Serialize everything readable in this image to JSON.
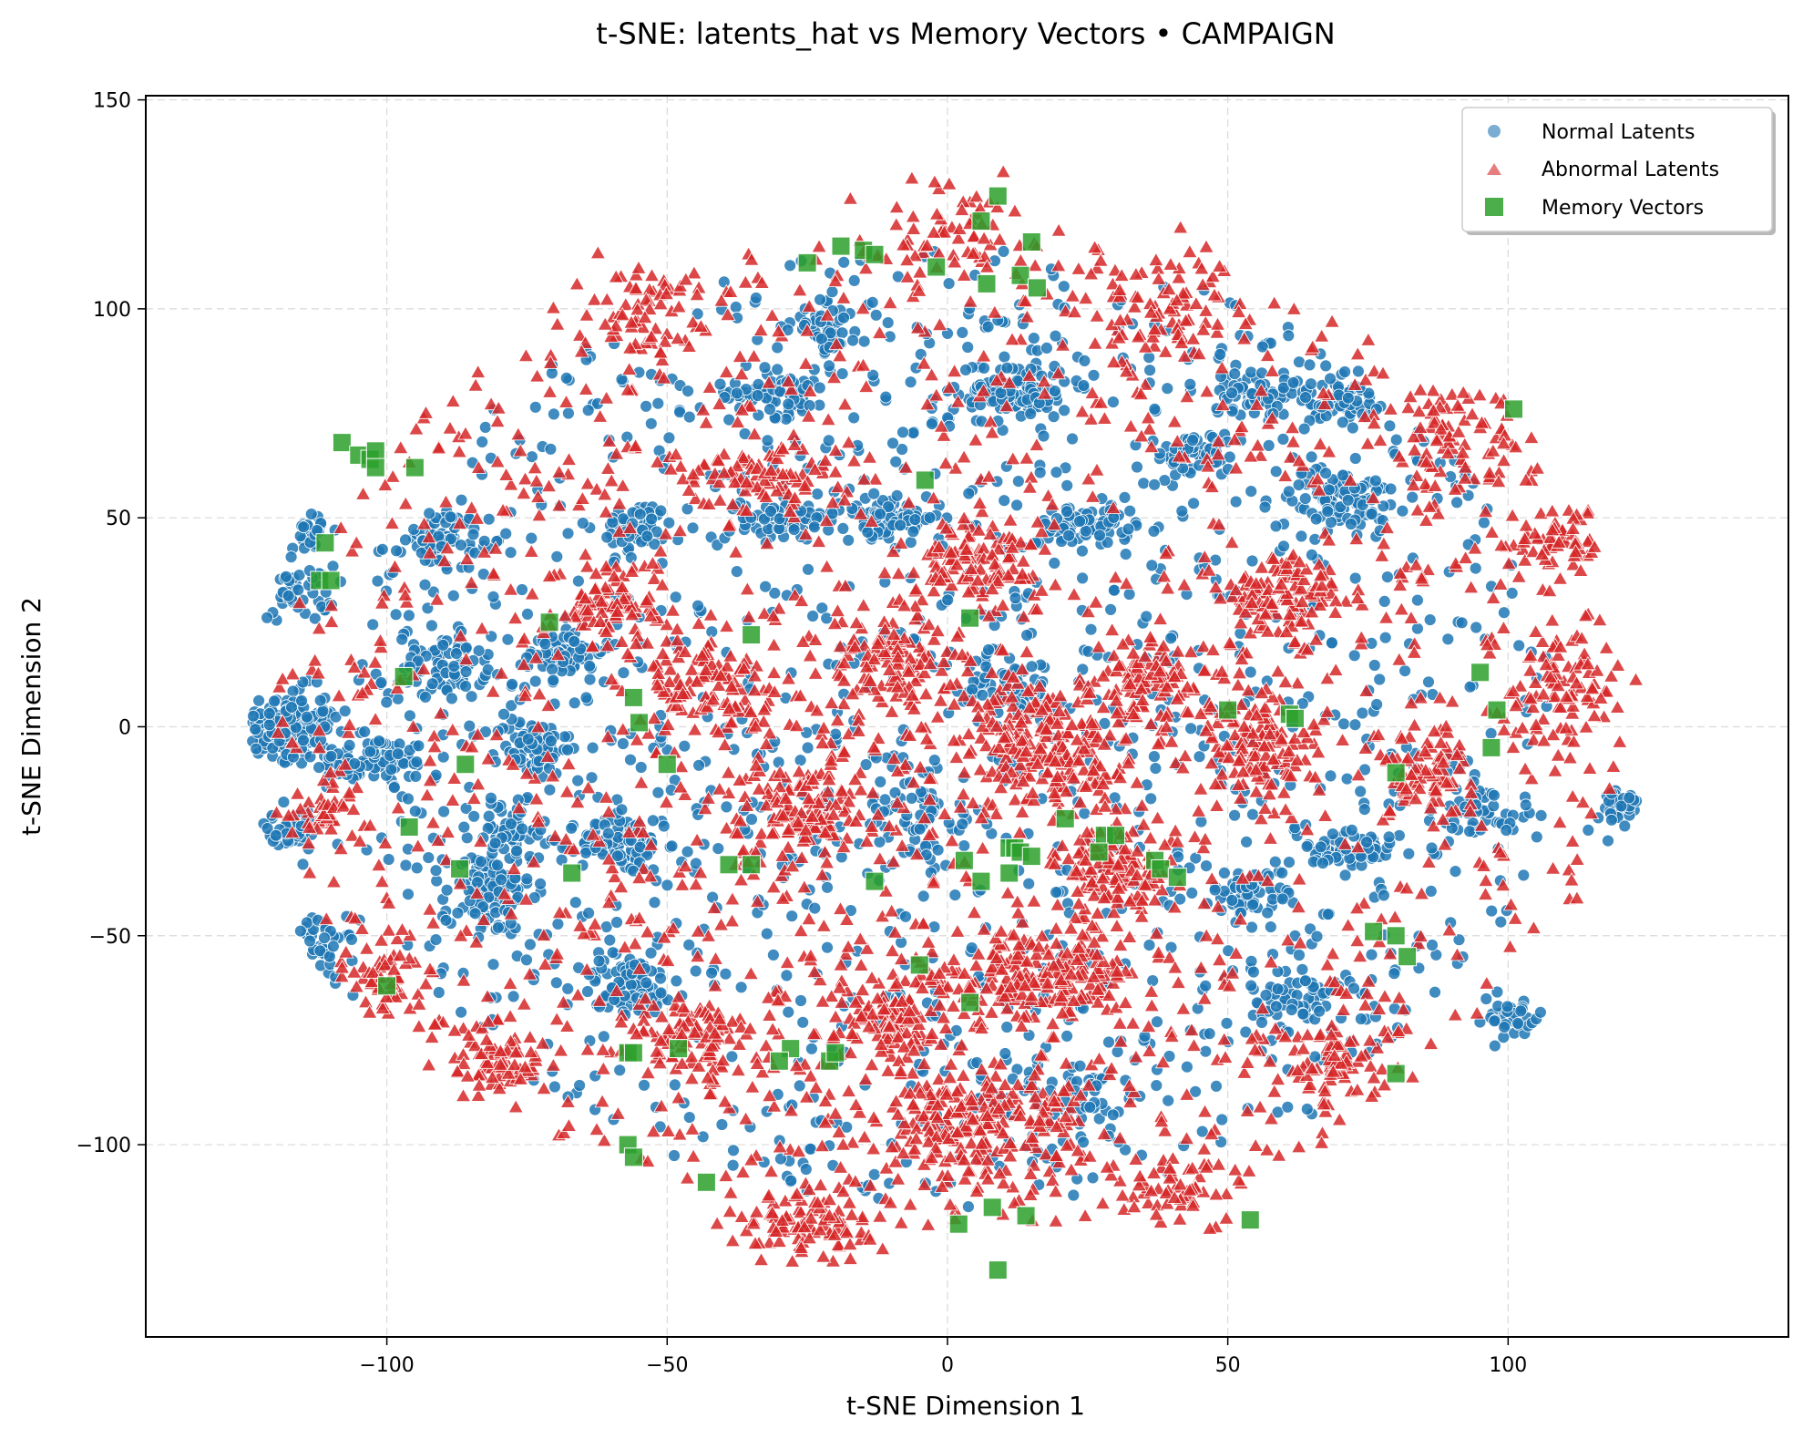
{
  "chart_data": {
    "type": "scatter",
    "title": "t-SNE: latents_hat vs Memory Vectors • CAMPAIGN",
    "xlabel": "t-SNE Dimension 1",
    "ylabel": "t-SNE Dimension 2",
    "xlim": [
      -143,
      150
    ],
    "ylim": [
      -146,
      151
    ],
    "xticks": [
      -100,
      -50,
      0,
      50,
      100
    ],
    "yticks": [
      -100,
      -50,
      0,
      50,
      100,
      150
    ],
    "xtick_labels": [
      "−100",
      "−50",
      "0",
      "50",
      "100"
    ],
    "ytick_labels": [
      "−100",
      "−50",
      "0",
      "50",
      "100",
      "150"
    ],
    "grid": true,
    "legend_position": "top-right",
    "series": [
      {
        "name": "Normal Latents",
        "marker": "circle",
        "color": "#1f77b4",
        "clusters": [
          {
            "cx": -120,
            "cy": -2,
            "rx": 12,
            "ry": 7,
            "n": 140
          },
          {
            "cx": -103,
            "cy": -8,
            "rx": 9,
            "ry": 5,
            "n": 80
          },
          {
            "cx": -117,
            "cy": 3,
            "rx": 6,
            "ry": 6,
            "n": 60
          },
          {
            "cx": -115,
            "cy": 47,
            "rx": 5,
            "ry": 5,
            "n": 50
          },
          {
            "cx": -116,
            "cy": 32,
            "rx": 6,
            "ry": 6,
            "n": 50
          },
          {
            "cx": -118,
            "cy": -25,
            "rx": 6,
            "ry": 5,
            "n": 50
          },
          {
            "cx": -112,
            "cy": -55,
            "rx": 6,
            "ry": 8,
            "n": 70
          },
          {
            "cx": -90,
            "cy": 15,
            "rx": 7,
            "ry": 8,
            "n": 80
          },
          {
            "cx": -90,
            "cy": 45,
            "rx": 6,
            "ry": 6,
            "n": 60
          },
          {
            "cx": -82,
            "cy": -40,
            "rx": 7,
            "ry": 9,
            "n": 90
          },
          {
            "cx": -78,
            "cy": -25,
            "rx": 6,
            "ry": 6,
            "n": 60
          },
          {
            "cx": -74,
            "cy": -5,
            "rx": 6,
            "ry": 7,
            "n": 70
          },
          {
            "cx": -68,
            "cy": 18,
            "rx": 6,
            "ry": 6,
            "n": 60
          },
          {
            "cx": -58,
            "cy": -28,
            "rx": 7,
            "ry": 6,
            "n": 90
          },
          {
            "cx": -57,
            "cy": -62,
            "rx": 8,
            "ry": 7,
            "n": 90
          },
          {
            "cx": -55,
            "cy": 48,
            "rx": 6,
            "ry": 5,
            "n": 50
          },
          {
            "cx": -30,
            "cy": 80,
            "rx": 8,
            "ry": 5,
            "n": 70
          },
          {
            "cx": -28,
            "cy": 50,
            "rx": 8,
            "ry": 4,
            "n": 70
          },
          {
            "cx": -10,
            "cy": 50,
            "rx": 8,
            "ry": 4,
            "n": 70
          },
          {
            "cx": -22,
            "cy": 95,
            "rx": 5,
            "ry": 5,
            "n": 40
          },
          {
            "cx": 12,
            "cy": 80,
            "rx": 9,
            "ry": 7,
            "n": 110
          },
          {
            "cx": 25,
            "cy": 48,
            "rx": 8,
            "ry": 5,
            "n": 70
          },
          {
            "cx": 44,
            "cy": 65,
            "rx": 6,
            "ry": 5,
            "n": 50
          },
          {
            "cx": 55,
            "cy": 80,
            "rx": 7,
            "ry": 5,
            "n": 60
          },
          {
            "cx": 70,
            "cy": 55,
            "rx": 8,
            "ry": 7,
            "n": 90
          },
          {
            "cx": 70,
            "cy": 78,
            "rx": 6,
            "ry": 4,
            "n": 50
          },
          {
            "cx": 72,
            "cy": -30,
            "rx": 7,
            "ry": 5,
            "n": 60
          },
          {
            "cx": 63,
            "cy": -65,
            "rx": 8,
            "ry": 7,
            "n": 70
          },
          {
            "cx": 54,
            "cy": -40,
            "rx": 6,
            "ry": 5,
            "n": 50
          },
          {
            "cx": 95,
            "cy": -20,
            "rx": 6,
            "ry": 5,
            "n": 40
          },
          {
            "cx": 120,
            "cy": -20,
            "rx": 6,
            "ry": 5,
            "n": 40
          },
          {
            "cx": 100,
            "cy": -70,
            "rx": 8,
            "ry": 5,
            "n": 40
          },
          {
            "cx": 12,
            "cy": 10,
            "rx": 8,
            "ry": 7,
            "n": 60
          },
          {
            "cx": -5,
            "cy": -20,
            "rx": 9,
            "ry": 12,
            "n": 60
          },
          {
            "cx": 20,
            "cy": -88,
            "rx": 15,
            "ry": 8,
            "n": 60
          },
          {
            "cx": 0,
            "cy": 0,
            "rx": 110,
            "ry": 115,
            "n": 1400
          }
        ]
      },
      {
        "name": "Abnormal Latents",
        "marker": "triangle",
        "color": "#d62728",
        "clusters": [
          {
            "cx": 15,
            "cy": -60,
            "rx": 18,
            "ry": 10,
            "n": 200
          },
          {
            "cx": 5,
            "cy": -95,
            "rx": 18,
            "ry": 12,
            "n": 220
          },
          {
            "cx": -10,
            "cy": -70,
            "rx": 9,
            "ry": 10,
            "n": 100
          },
          {
            "cx": -25,
            "cy": -120,
            "rx": 12,
            "ry": 8,
            "n": 90
          },
          {
            "cx": 15,
            "cy": 0,
            "rx": 10,
            "ry": 12,
            "n": 120
          },
          {
            "cx": 30,
            "cy": -35,
            "rx": 10,
            "ry": 10,
            "n": 120
          },
          {
            "cx": 35,
            "cy": 10,
            "rx": 8,
            "ry": 8,
            "n": 90
          },
          {
            "cx": 55,
            "cy": -5,
            "rx": 10,
            "ry": 10,
            "n": 110
          },
          {
            "cx": 60,
            "cy": 30,
            "rx": 10,
            "ry": 10,
            "n": 110
          },
          {
            "cx": 85,
            "cy": -10,
            "rx": 8,
            "ry": 10,
            "n": 80
          },
          {
            "cx": 110,
            "cy": 10,
            "rx": 10,
            "ry": 12,
            "n": 80
          },
          {
            "cx": 110,
            "cy": 45,
            "rx": 8,
            "ry": 8,
            "n": 60
          },
          {
            "cx": 5,
            "cy": 40,
            "rx": 10,
            "ry": 8,
            "n": 100
          },
          {
            "cx": -10,
            "cy": 15,
            "rx": 10,
            "ry": 12,
            "n": 110
          },
          {
            "cx": -25,
            "cy": -20,
            "rx": 10,
            "ry": 12,
            "n": 120
          },
          {
            "cx": -42,
            "cy": 10,
            "rx": 10,
            "ry": 12,
            "n": 110
          },
          {
            "cx": -60,
            "cy": 30,
            "rx": 8,
            "ry": 10,
            "n": 80
          },
          {
            "cx": -45,
            "cy": -75,
            "rx": 10,
            "ry": 10,
            "n": 90
          },
          {
            "cx": -80,
            "cy": -80,
            "rx": 8,
            "ry": 8,
            "n": 70
          },
          {
            "cx": -100,
            "cy": -60,
            "rx": 6,
            "ry": 8,
            "n": 50
          },
          {
            "cx": -35,
            "cy": 60,
            "rx": 10,
            "ry": 6,
            "n": 70
          },
          {
            "cx": -55,
            "cy": 100,
            "rx": 10,
            "ry": 10,
            "n": 60
          },
          {
            "cx": 0,
            "cy": 120,
            "rx": 15,
            "ry": 10,
            "n": 60
          },
          {
            "cx": 40,
            "cy": 100,
            "rx": 15,
            "ry": 12,
            "n": 70
          },
          {
            "cx": 90,
            "cy": 70,
            "rx": 12,
            "ry": 12,
            "n": 70
          },
          {
            "cx": 20,
            "cy": -10,
            "rx": 12,
            "ry": 10,
            "n": 100
          },
          {
            "cx": 70,
            "cy": -80,
            "rx": 10,
            "ry": 8,
            "n": 70
          },
          {
            "cx": 40,
            "cy": -110,
            "rx": 12,
            "ry": 8,
            "n": 60
          },
          {
            "cx": -110,
            "cy": -20,
            "rx": 6,
            "ry": 6,
            "n": 30
          },
          {
            "cx": 0,
            "cy": 0,
            "rx": 120,
            "ry": 120,
            "n": 1500
          }
        ]
      },
      {
        "name": "Memory Vectors",
        "marker": "square",
        "color": "#2ca02c",
        "points": [
          [
            -108,
            68
          ],
          [
            -105,
            65
          ],
          [
            -103,
            64
          ],
          [
            -102,
            66
          ],
          [
            -102,
            62
          ],
          [
            -95,
            62
          ],
          [
            -111,
            44
          ],
          [
            -112,
            35
          ],
          [
            -110,
            35
          ],
          [
            -97,
            12
          ],
          [
            -71,
            25
          ],
          [
            -35,
            22
          ],
          [
            -56,
            7
          ],
          [
            -55,
            1
          ],
          [
            -86,
            -9
          ],
          [
            -50,
            -9
          ],
          [
            -96,
            -24
          ],
          [
            -87,
            -34
          ],
          [
            -67,
            -35
          ],
          [
            -39,
            -33
          ],
          [
            -35,
            -33
          ],
          [
            -13,
            -37
          ],
          [
            -100,
            -62
          ],
          [
            -57,
            -78
          ],
          [
            -56,
            -78
          ],
          [
            -48,
            -77
          ],
          [
            -28,
            -77
          ],
          [
            -30,
            -80
          ],
          [
            -21,
            -80
          ],
          [
            -20,
            -78
          ],
          [
            -57,
            -100
          ],
          [
            -56,
            -103
          ],
          [
            -43,
            -109
          ],
          [
            -25,
            111
          ],
          [
            -19,
            115
          ],
          [
            -15,
            114
          ],
          [
            -13,
            113
          ],
          [
            -2,
            110
          ],
          [
            9,
            127
          ],
          [
            6,
            121
          ],
          [
            7,
            106
          ],
          [
            13,
            108
          ],
          [
            15,
            116
          ],
          [
            16,
            105
          ],
          [
            -4,
            59
          ],
          [
            4,
            26
          ],
          [
            50,
            4
          ],
          [
            61,
            3
          ],
          [
            62,
            2
          ],
          [
            80,
            -11
          ],
          [
            95,
            13
          ],
          [
            98,
            4
          ],
          [
            97,
            -5
          ],
          [
            101,
            76
          ],
          [
            3,
            -32
          ],
          [
            6,
            -37
          ],
          [
            11,
            -29
          ],
          [
            12,
            -29
          ],
          [
            11,
            -35
          ],
          [
            13,
            -30
          ],
          [
            15,
            -31
          ],
          [
            21,
            -22
          ],
          [
            28,
            -26
          ],
          [
            30,
            -26
          ],
          [
            27,
            -30
          ],
          [
            37,
            -32
          ],
          [
            38,
            -34
          ],
          [
            41,
            -36
          ],
          [
            76,
            -49
          ],
          [
            80,
            -50
          ],
          [
            82,
            -55
          ],
          [
            80,
            -83
          ],
          [
            -5,
            -57
          ],
          [
            4,
            -66
          ],
          [
            2,
            -119
          ],
          [
            8,
            -115
          ],
          [
            14,
            -117
          ],
          [
            9,
            -130
          ],
          [
            54,
            -118
          ]
        ]
      }
    ]
  },
  "legend": {
    "items": [
      {
        "label": "Normal Latents",
        "marker": "circle",
        "color": "#1f77b4"
      },
      {
        "label": "Abnormal Latents",
        "marker": "triangle",
        "color": "#d62728"
      },
      {
        "label": "Memory Vectors",
        "marker": "square",
        "color": "#2ca02c"
      }
    ]
  }
}
